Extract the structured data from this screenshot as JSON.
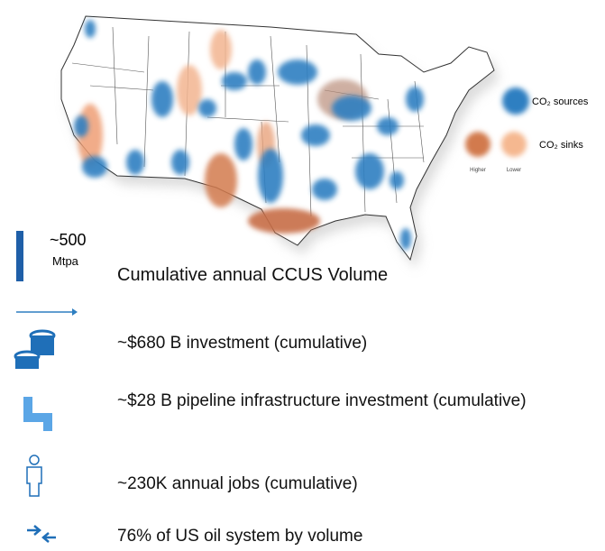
{
  "legend": {
    "sources": "CO₂ sources",
    "sinks": "CO₂ sinks",
    "higher": "Higher",
    "lower": "Lower"
  },
  "scale": {
    "value": "~500",
    "unit": "Mtpa",
    "label": "Cumulative annual CCUS Volume"
  },
  "stats": [
    {
      "text": "~$680 B investment (cumulative)"
    },
    {
      "text": "~$28 B pipeline infrastructure investment (cumulative)"
    },
    {
      "text": "~230K annual jobs (cumulative)"
    },
    {
      "text": "76% of US oil system by volume"
    }
  ]
}
